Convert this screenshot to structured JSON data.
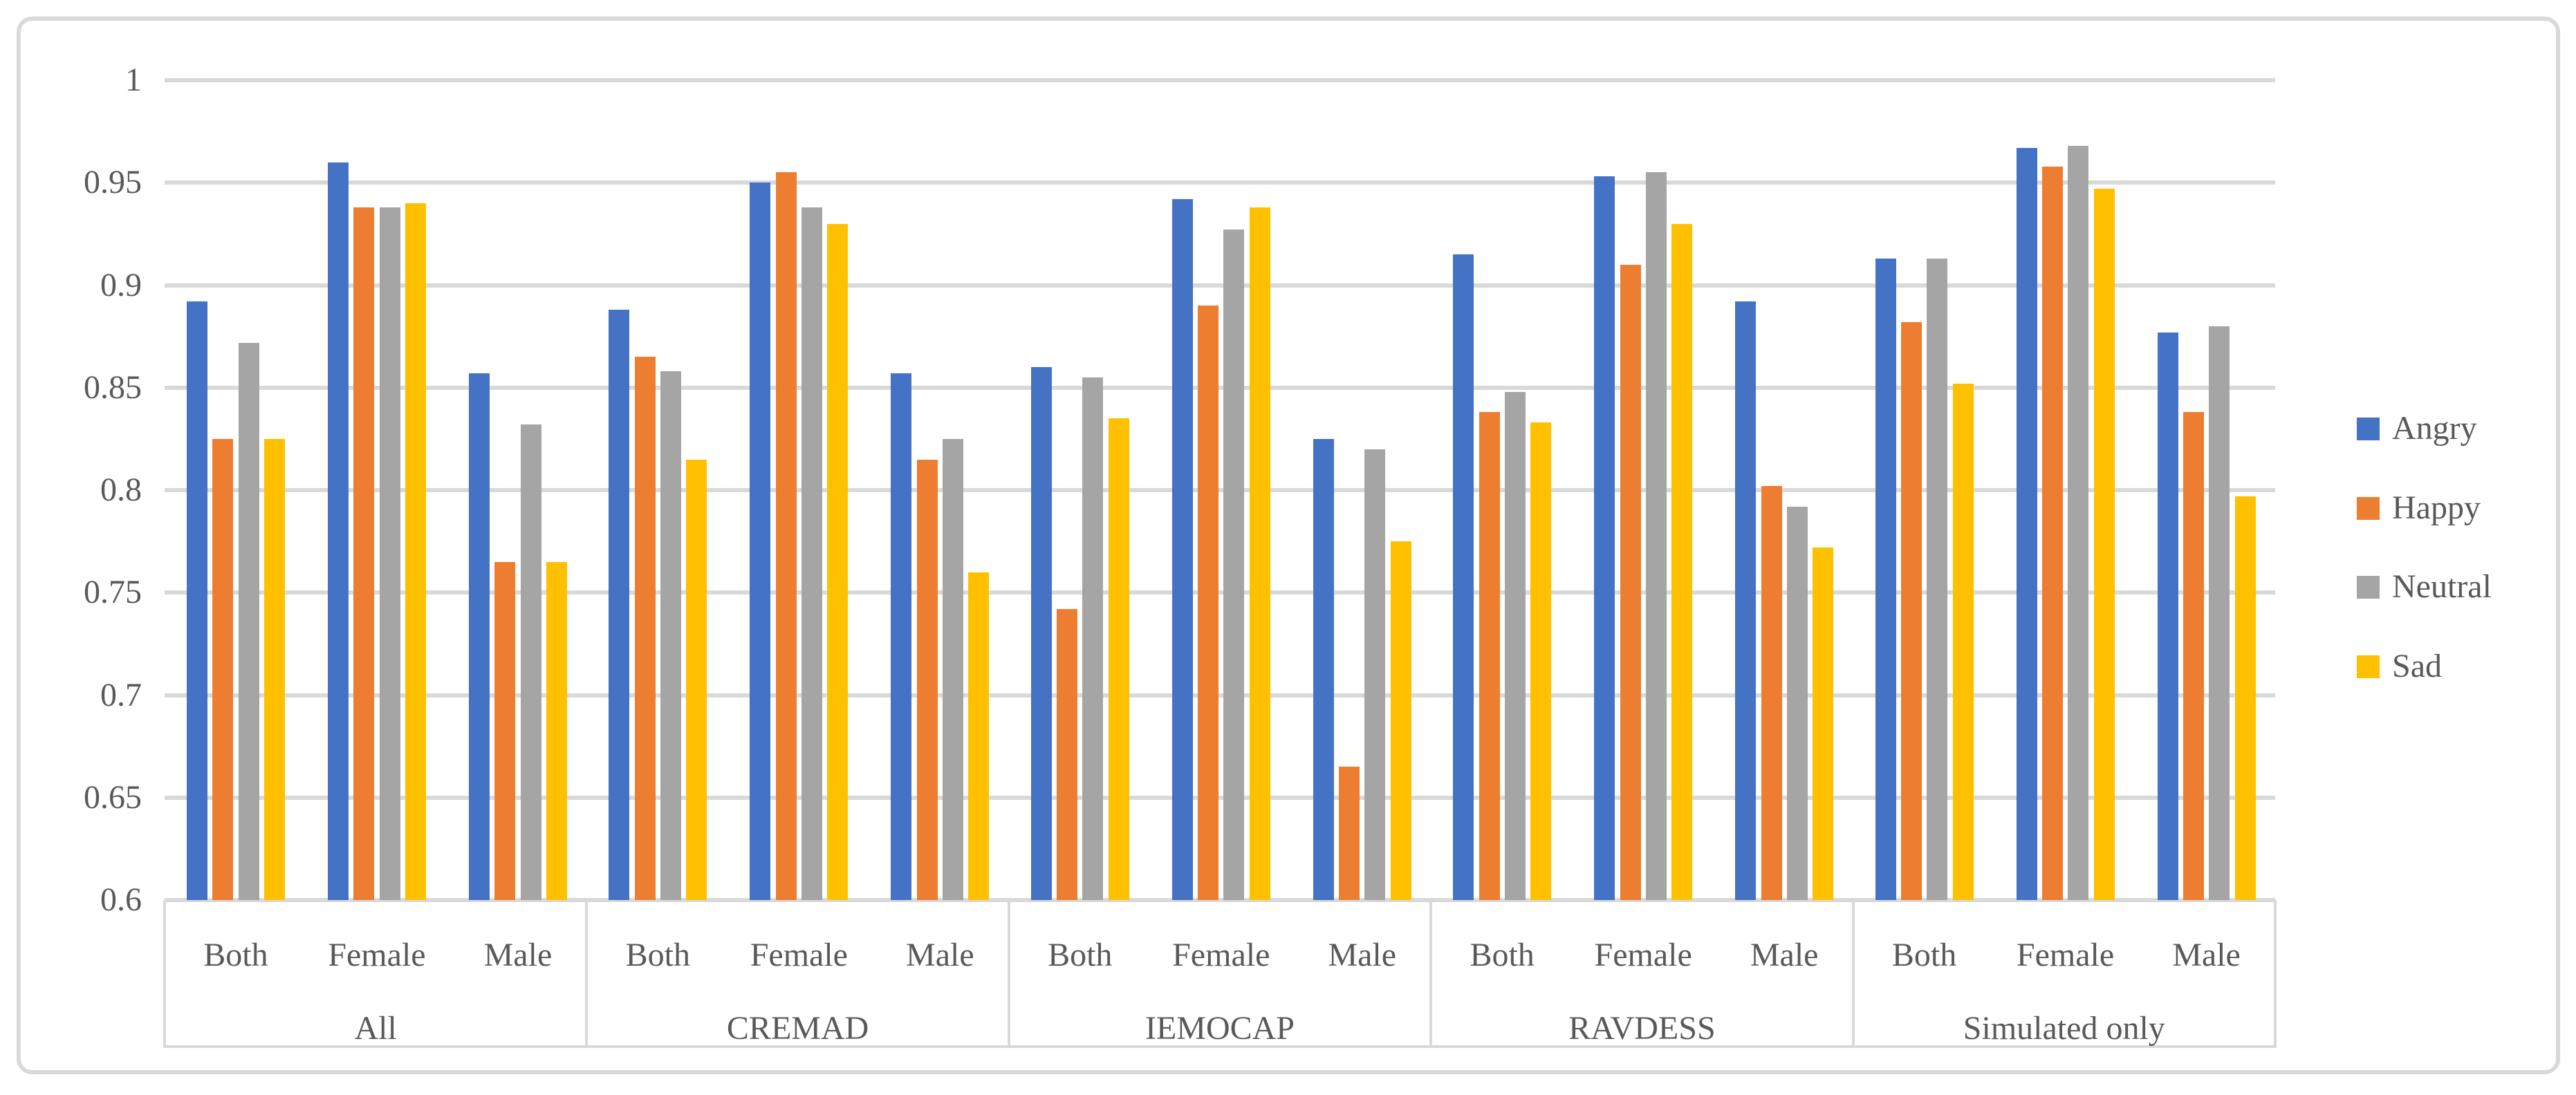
{
  "figure": {
    "kind": "grouped-bar-chart-figure",
    "background": "#ffffff",
    "border_color": "#d9d9d9"
  },
  "chart_data": {
    "type": "bar",
    "title": "",
    "xlabel": "",
    "ylabel": "",
    "ylim": [
      0.6,
      1.0
    ],
    "grid": true,
    "gridline_color": "#d9d9d9",
    "text_color": "#595959",
    "legend_position": "right",
    "y_ticks": [
      {
        "label": "1",
        "value": 1.0
      },
      {
        "label": "0.95",
        "value": 0.95
      },
      {
        "label": "0.9",
        "value": 0.9
      },
      {
        "label": "0.85",
        "value": 0.85
      },
      {
        "label": "0.8",
        "value": 0.8
      },
      {
        "label": "0.75",
        "value": 0.75
      },
      {
        "label": "0.7",
        "value": 0.7
      },
      {
        "label": "0.65",
        "value": 0.65
      },
      {
        "label": "0.6",
        "value": 0.6
      }
    ],
    "group_labels": [
      "All",
      "CREMAD",
      "IEMOCAP",
      "RAVDESS",
      "Simulated only"
    ],
    "subcategories": [
      "Both",
      "Female",
      "Male"
    ],
    "series": [
      {
        "name": "Angry",
        "color": "#4472C4",
        "values": [
          [
            0.892,
            0.96,
            0.857
          ],
          [
            0.888,
            0.95,
            0.857
          ],
          [
            0.86,
            0.942,
            0.825
          ],
          [
            0.915,
            0.953,
            0.892
          ],
          [
            0.913,
            0.967,
            0.877
          ]
        ]
      },
      {
        "name": "Happy",
        "color": "#ED7D31",
        "values": [
          [
            0.825,
            0.938,
            0.765
          ],
          [
            0.865,
            0.955,
            0.815
          ],
          [
            0.742,
            0.89,
            0.665
          ],
          [
            0.838,
            0.91,
            0.802
          ],
          [
            0.882,
            0.958,
            0.838
          ]
        ]
      },
      {
        "name": "Neutral",
        "color": "#A5A5A5",
        "values": [
          [
            0.872,
            0.938,
            0.832
          ],
          [
            0.858,
            0.938,
            0.825
          ],
          [
            0.855,
            0.927,
            0.82
          ],
          [
            0.848,
            0.955,
            0.792
          ],
          [
            0.913,
            0.968,
            0.88
          ]
        ]
      },
      {
        "name": "Sad",
        "color": "#FFC000",
        "values": [
          [
            0.825,
            0.94,
            0.765
          ],
          [
            0.815,
            0.93,
            0.76
          ],
          [
            0.835,
            0.938,
            0.775
          ],
          [
            0.833,
            0.93,
            0.772
          ],
          [
            0.852,
            0.947,
            0.797
          ]
        ]
      }
    ]
  }
}
